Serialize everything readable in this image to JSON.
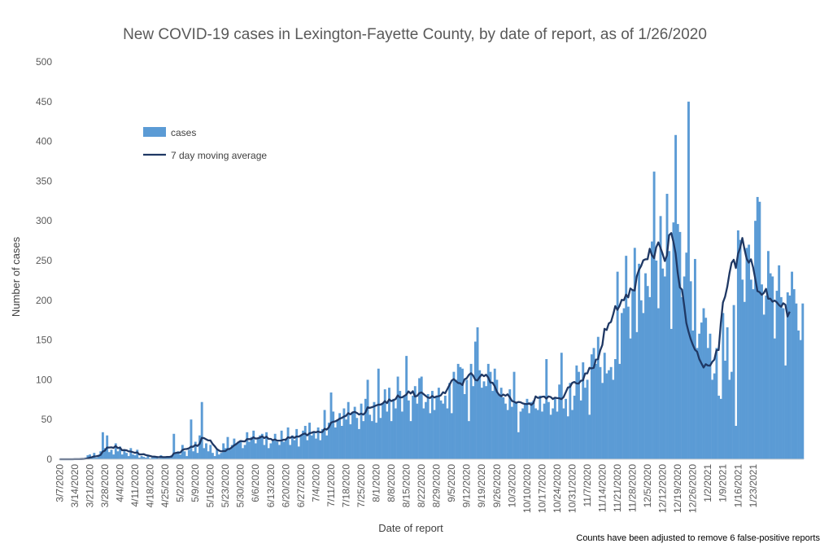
{
  "chart_data": {
    "type": "bar",
    "title": "New COVID-19 cases in Lexington-Fayette County, by date of report, as of 1/26/2020",
    "xlabel": "Date of report",
    "ylabel": "Number of cases",
    "ylim": [
      0,
      500
    ],
    "y_ticks": [
      "0",
      "50",
      "100",
      "150",
      "200",
      "250",
      "300",
      "350",
      "400",
      "450",
      "500"
    ],
    "x_ticks": [
      "3/7/2020",
      "3/14/2020",
      "3/21/2020",
      "3/28/2020",
      "4/4/2020",
      "4/11/2020",
      "4/18/2020",
      "4/25/2020",
      "5/2/2020",
      "5/9/2020",
      "5/16/2020",
      "5/23/2020",
      "5/30/2020",
      "6/6/2020",
      "6/13/2020",
      "6/20/2020",
      "6/27/2020",
      "7/4/2020",
      "7/11/2020",
      "7/18/2020",
      "7/25/2020",
      "8/1/2020",
      "8/8/2020",
      "8/15/2020",
      "8/22/2020",
      "8/29/2020",
      "9/5/2020",
      "9/12/2020",
      "9/19/2020",
      "9/26/2020",
      "10/3/2020",
      "10/10/2020",
      "10/17/2020",
      "10/24/2020",
      "10/31/2020",
      "11/7/2020",
      "11/14/2020",
      "11/21/2020",
      "11/28/2020",
      "12/5/2020",
      "12/12/2020",
      "12/19/2020",
      "12/26/2020",
      "1/2/2021",
      "1/9/2021",
      "1/16/2021",
      "1/23/2021"
    ],
    "grid": false,
    "legend_position": "upper-left",
    "series": [
      {
        "name": "cases",
        "kind": "bar",
        "color": "#5b9bd5",
        "values": [
          0,
          0,
          0,
          0,
          0,
          0,
          0,
          0,
          1,
          0,
          0,
          0,
          2,
          5,
          6,
          3,
          8,
          2,
          4,
          10,
          34,
          14,
          30,
          9,
          12,
          6,
          20,
          10,
          16,
          6,
          12,
          8,
          4,
          14,
          6,
          5,
          12,
          2,
          4,
          3,
          2,
          5,
          1,
          2,
          4,
          3,
          1,
          5,
          2,
          3,
          4,
          2,
          5,
          32,
          8,
          10,
          6,
          18,
          10,
          4,
          12,
          50,
          10,
          22,
          8,
          30,
          72,
          14,
          20,
          10,
          18,
          8,
          4,
          12,
          6,
          8,
          20,
          14,
          28,
          12,
          18,
          26,
          20,
          22,
          24,
          14,
          18,
          34,
          22,
          28,
          36,
          20,
          26,
          30,
          32,
          18,
          34,
          14,
          20,
          24,
          32,
          22,
          18,
          36,
          22,
          26,
          40,
          18,
          30,
          24,
          38,
          16,
          30,
          36,
          42,
          24,
          46,
          30,
          34,
          26,
          40,
          24,
          38,
          62,
          30,
          46,
          84,
          60,
          40,
          50,
          58,
          42,
          64,
          50,
          72,
          44,
          58,
          66,
          52,
          38,
          70,
          48,
          76,
          100,
          56,
          48,
          72,
          46,
          114,
          52,
          70,
          88,
          60,
          90,
          48,
          76,
          64,
          104,
          86,
          60,
          80,
          130,
          74,
          48,
          80,
          92,
          70,
          102,
          104,
          64,
          72,
          82,
          58,
          86,
          62,
          80,
          90,
          74,
          70,
          80,
          64,
          96,
          58,
          110,
          100,
          120,
          116,
          114,
          82,
          100,
          48,
          120,
          92,
          148,
          166,
          112,
          90,
          98,
          92,
          120,
          110,
          86,
          114,
          100,
          82,
          90,
          78,
          70,
          62,
          88,
          66,
          110,
          72,
          34,
          60,
          64,
          70,
          76,
          58,
          72,
          74,
          64,
          62,
          80,
          60,
          70,
          126,
          72,
          56,
          64,
          78,
          60,
          94,
          134,
          64,
          76,
          54,
          96,
          62,
          80,
          118,
          110,
          74,
          122,
          90,
          100,
          56,
          132,
          140,
          120,
          154,
          116,
          96,
          134,
          108,
          112,
          116,
          100,
          126,
          236,
          120,
          184,
          190,
          256,
          192,
          152,
          212,
          266,
          160,
          246,
          200,
          184,
          234,
          218,
          204,
          274,
          362,
          250,
          190,
          306,
          240,
          230,
          334,
          262,
          164,
          298,
          408,
          296,
          286,
          204,
          230,
          260,
          450,
          224,
          162,
          252,
          140,
          158,
          172,
          190,
          178,
          140,
          158,
          100,
          108,
          140,
          80,
          76,
          184,
          124,
          166,
          100,
          110,
          194,
          42,
          288,
          276,
          226,
          198,
          266,
          270,
          226,
          214,
          300,
          330,
          324,
          220,
          182,
          206,
          262,
          234,
          230,
          152,
          212,
          244,
          204,
          190,
          118,
          210,
          206,
          236,
          214,
          196,
          162,
          150,
          196
        ]
      },
      {
        "name": "7 day moving average",
        "kind": "line",
        "color": "#1f3864",
        "values": [
          0,
          0,
          0,
          0,
          0,
          0,
          0,
          0.1,
          0.1,
          0.1,
          0.2,
          0.3,
          0.5,
          1.2,
          2,
          2.6,
          3.6,
          3.7,
          4.3,
          5.4,
          9.6,
          10.9,
          14.7,
          14.7,
          15,
          14.3,
          16.6,
          14.1,
          14.6,
          11.3,
          11.6,
          11.3,
          10,
          9.7,
          8.9,
          8.1,
          8.7,
          6.1,
          6.1,
          6.4,
          5.3,
          4.8,
          4.1,
          3.3,
          3.3,
          2.9,
          2.6,
          3.1,
          2.7,
          2.7,
          2.9,
          2.9,
          3.4,
          7.3,
          8,
          8.3,
          8.3,
          11.6,
          12.7,
          12.9,
          13.7,
          15.8,
          15.7,
          18,
          16.7,
          19.4,
          26.9,
          26.6,
          25.1,
          23.7,
          23.7,
          19.4,
          16.4,
          12.9,
          10.9,
          9.9,
          10.4,
          10.3,
          12.7,
          13,
          15.1,
          17.4,
          19.1,
          21.4,
          22.9,
          22.6,
          22.5,
          25.3,
          25.3,
          25.4,
          27.6,
          26,
          26.4,
          27.1,
          28.9,
          26.6,
          28.4,
          25.7,
          25.6,
          24,
          24.9,
          23.4,
          23.4,
          23.6,
          24.6,
          24.6,
          27.7,
          26.9,
          28.4,
          26.9,
          28.7,
          28.4,
          30,
          31.7,
          32.4,
          30,
          32.7,
          33.3,
          34.4,
          33.9,
          34.9,
          34,
          34.3,
          38.3,
          37.3,
          40.1,
          46,
          47.1,
          47.7,
          49.1,
          51,
          52,
          53.7,
          54.7,
          58.1,
          56.4,
          58.9,
          59.6,
          58.3,
          56.3,
          57.4,
          56.2,
          58.9,
          65.3,
          64.7,
          65.4,
          66.5,
          67.7,
          68.7,
          68.7,
          70.1,
          73.1,
          70.6,
          75.2,
          73.2,
          74.3,
          75.7,
          80.3,
          77.8,
          77.9,
          79.6,
          81.3,
          85.4,
          82.7,
          85.6,
          79,
          79.7,
          83.1,
          84.1,
          81.9,
          79.7,
          77.6,
          77.1,
          79.6,
          77.7,
          79,
          79.3,
          80.4,
          84.3,
          83.1,
          88.1,
          93.4,
          98.9,
          100.9,
          98.3,
          96,
          95.6,
          93.4,
          100.6,
          101.9,
          106.1,
          108.3,
          105.3,
          99.9,
          99.1,
          103.3,
          106.6,
          104.5,
          106.3,
          102.9,
          96.6,
          96.3,
          92.1,
          85.1,
          81.2,
          79.3,
          81.4,
          79.9,
          81.7,
          78.1,
          73.4,
          72.4,
          71,
          72.1,
          71.7,
          70.3,
          69.7,
          69.4,
          70.4,
          68.4,
          70.7,
          79.1,
          77.3,
          77.5,
          78.6,
          78.9,
          76.3,
          79.1,
          78.3,
          75.8,
          77.5,
          77,
          76.7,
          75.7,
          78.2,
          84.2,
          90.3,
          91,
          96.1,
          97.3,
          95.4,
          95.2,
          98.8,
          99.3,
          108,
          108,
          115,
          114.4,
          115,
          125.4,
          126,
          136.9,
          143.9,
          164.1,
          162.6,
          170.9,
          172.7,
          181.9,
          192.7,
          188,
          193.1,
          200.6,
          200.1,
          207.1,
          203.7,
          214.9,
          212.9,
          212.3,
          230.3,
          238.3,
          243.1,
          250.3,
          251.6,
          251.7,
          264.9,
          256.9,
          253.1,
          266.6,
          272.9,
          266,
          258.3,
          249.4,
          256.6,
          282,
          284.6,
          273.4,
          259.3,
          234.4,
          216.2,
          213.4,
          193.3,
          171.4,
          160.7,
          151.3,
          144.1,
          137.9,
          135.3,
          126.1,
          120.7,
          115.4,
          119.6,
          118,
          117.7,
          122.4,
          125.4,
          137.3,
          137.4,
          171.3,
          197.3,
          204.6,
          216.9,
          233.6,
          247.1,
          251,
          240.7,
          258.4,
          266.1,
          278.4,
          264.3,
          252.4,
          247.4,
          251.6,
          241.4,
          227.1,
          211.6,
          210.3,
          207,
          209.3,
          214.4,
          202,
          202.1,
          198.3,
          199.7,
          197.5,
          194.1,
          191.9,
          196.3,
          194.3,
          179.6,
          185.7
        ]
      }
    ],
    "legend": {
      "cases": "cases",
      "ma": "7 day moving average"
    },
    "note": "Counts have been adjusted to remove 6 false-positive reports"
  }
}
